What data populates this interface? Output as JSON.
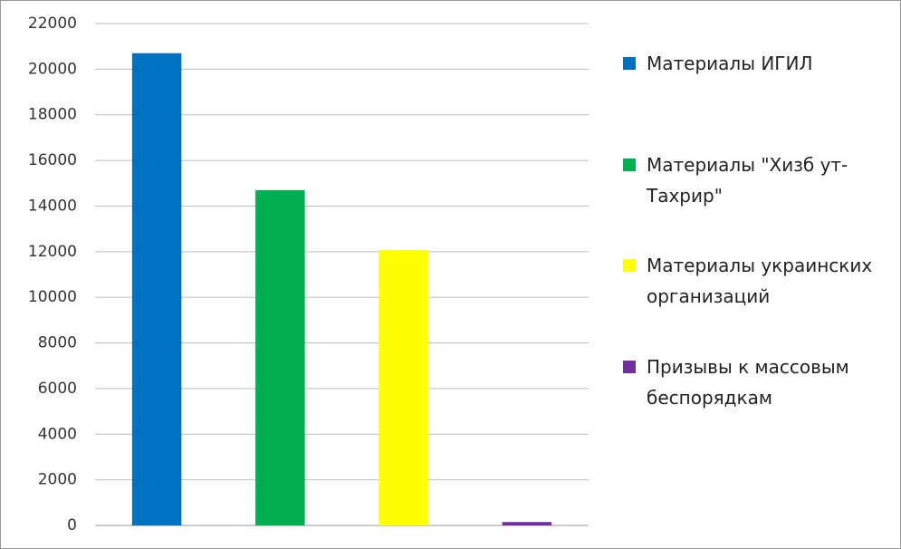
{
  "chart_data": {
    "type": "bar",
    "categories": [
      null
    ],
    "series": [
      {
        "name": "Материалы ИГИЛ",
        "color": "#0070c0",
        "values": [
          20700
        ]
      },
      {
        "name": "Материалы \"Хизб ут-Тахрир\"",
        "color": "#00b050",
        "values": [
          14700
        ]
      },
      {
        "name": "Материалы украинских организаций",
        "color": "#ffff00",
        "values": [
          12070
        ]
      },
      {
        "name": "Призывы к массовым беспорядкам",
        "color": "#7030a0",
        "values": [
          150
        ]
      }
    ],
    "ylim": [
      0,
      22000
    ],
    "yticks": [
      0,
      2000,
      4000,
      6000,
      8000,
      10000,
      12000,
      14000,
      16000,
      18000,
      20000,
      22000
    ],
    "grid": true,
    "legend": "right"
  }
}
